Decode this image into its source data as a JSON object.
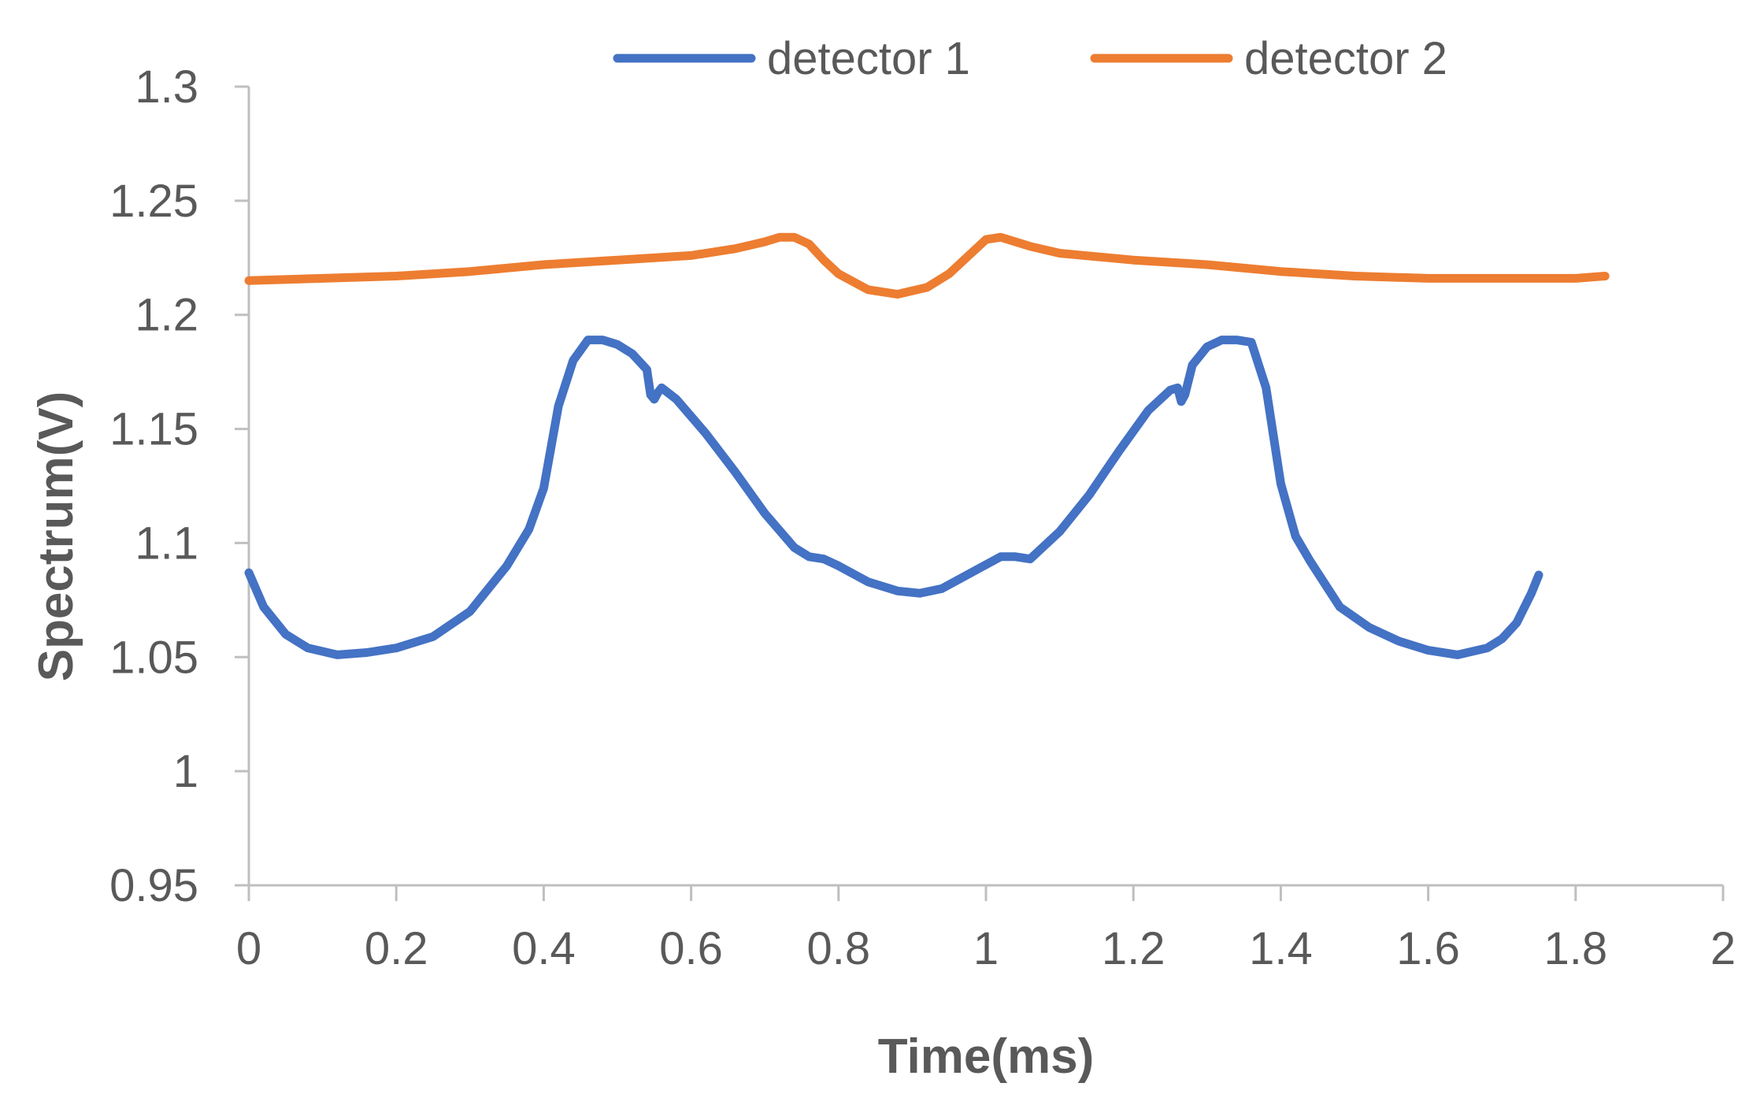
{
  "chart_data": {
    "type": "line",
    "xlabel": "Time(ms)",
    "ylabel": "Spectrum(V)",
    "xlim": [
      0,
      2
    ],
    "ylim": [
      0.95,
      1.3
    ],
    "x_ticks": [
      0,
      0.2,
      0.4,
      0.6,
      0.8,
      1,
      1.2,
      1.4,
      1.6,
      1.8,
      2
    ],
    "x_tick_labels": [
      "0",
      "0.2",
      "0.4",
      "0.6",
      "0.8",
      "1",
      "1.2",
      "1.4",
      "1.6",
      "1.8",
      "2"
    ],
    "y_ticks": [
      0.95,
      1,
      1.05,
      1.1,
      1.15,
      1.2,
      1.25,
      1.3
    ],
    "y_tick_labels": [
      "0.95",
      "1",
      "1.05",
      "1.1",
      "1.15",
      "1.2",
      "1.25",
      "1.3"
    ],
    "grid": false,
    "legend_position": "top",
    "series": [
      {
        "name": "detector 1",
        "color": "#4472C4",
        "x": [
          0,
          0.02,
          0.05,
          0.08,
          0.12,
          0.16,
          0.2,
          0.25,
          0.3,
          0.35,
          0.38,
          0.4,
          0.42,
          0.44,
          0.46,
          0.48,
          0.5,
          0.52,
          0.54,
          0.545,
          0.55,
          0.555,
          0.56,
          0.58,
          0.62,
          0.66,
          0.7,
          0.74,
          0.76,
          0.78,
          0.8,
          0.84,
          0.88,
          0.91,
          0.94,
          0.98,
          1.02,
          1.04,
          1.06,
          1.1,
          1.14,
          1.18,
          1.22,
          1.25,
          1.26,
          1.265,
          1.27,
          1.28,
          1.3,
          1.32,
          1.34,
          1.36,
          1.38,
          1.4,
          1.42,
          1.44,
          1.48,
          1.52,
          1.56,
          1.6,
          1.64,
          1.68,
          1.7,
          1.72,
          1.74,
          1.75
        ],
        "y": [
          1.087,
          1.072,
          1.06,
          1.054,
          1.051,
          1.052,
          1.054,
          1.059,
          1.07,
          1.09,
          1.106,
          1.124,
          1.16,
          1.18,
          1.189,
          1.189,
          1.187,
          1.183,
          1.176,
          1.165,
          1.163,
          1.166,
          1.168,
          1.163,
          1.148,
          1.131,
          1.113,
          1.098,
          1.094,
          1.093,
          1.09,
          1.083,
          1.079,
          1.078,
          1.08,
          1.087,
          1.094,
          1.094,
          1.093,
          1.105,
          1.121,
          1.14,
          1.158,
          1.167,
          1.168,
          1.162,
          1.165,
          1.178,
          1.186,
          1.189,
          1.189,
          1.188,
          1.168,
          1.126,
          1.103,
          1.092,
          1.072,
          1.063,
          1.057,
          1.053,
          1.051,
          1.054,
          1.058,
          1.065,
          1.078,
          1.086
        ]
      },
      {
        "name": "detector 2",
        "color": "#ED7D31",
        "x": [
          0,
          0.1,
          0.2,
          0.3,
          0.4,
          0.5,
          0.6,
          0.66,
          0.7,
          0.72,
          0.74,
          0.76,
          0.78,
          0.8,
          0.84,
          0.88,
          0.92,
          0.95,
          0.98,
          1.0,
          1.02,
          1.04,
          1.06,
          1.1,
          1.2,
          1.3,
          1.4,
          1.5,
          1.6,
          1.7,
          1.8,
          1.84
        ],
        "y": [
          1.215,
          1.216,
          1.217,
          1.219,
          1.222,
          1.224,
          1.226,
          1.229,
          1.232,
          1.234,
          1.234,
          1.231,
          1.224,
          1.218,
          1.211,
          1.209,
          1.212,
          1.218,
          1.227,
          1.233,
          1.234,
          1.232,
          1.23,
          1.227,
          1.224,
          1.222,
          1.219,
          1.217,
          1.216,
          1.216,
          1.216,
          1.217
        ]
      }
    ]
  }
}
